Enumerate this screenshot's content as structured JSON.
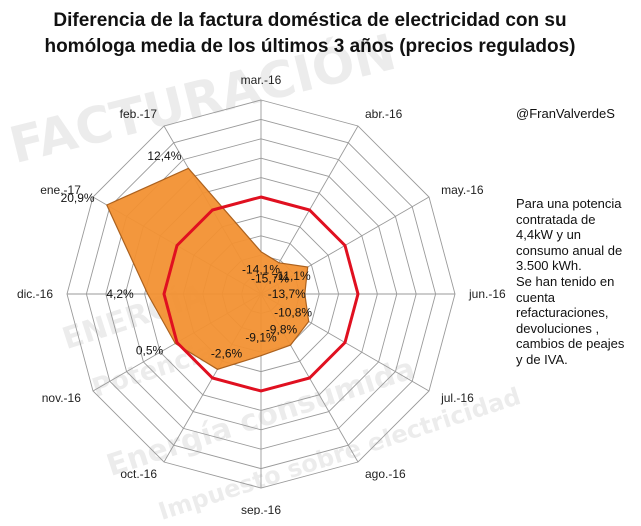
{
  "watermarks": [
    "FACTURACIÓN",
    "ENERGÍA",
    "Energía consumida",
    "Potencia",
    "Impuesto sobre electricidad"
  ],
  "title_line1": "Diferencia de la factura doméstica de electricidad con su",
  "title_line2": "homóloga media de los últimos 3 años (precios regulados)",
  "credit": "@FranValverdeS",
  "note_lines": [
    "Para una potencia",
    "contratada de",
    "4,4kW y un",
    "consumo anual de",
    "3.500 kWh.",
    "Se han tenido en",
    "cuenta",
    "refacturaciones,",
    "devoluciones ,",
    "cambios de peajes",
    "y  de IVA."
  ],
  "chart_data": {
    "type": "radar",
    "categories": [
      "mar.-16",
      "abr.-16",
      "may.-16",
      "jun.-16",
      "jul.-16",
      "ago.-16",
      "sep.-16",
      "oct.-16",
      "nov.-16",
      "dic.-16",
      "ene.-17",
      "feb.-17"
    ],
    "values": [
      -14.1,
      -15.7,
      -11.1,
      -13.7,
      -10.8,
      -9.8,
      -9.1,
      -2.6,
      0.5,
      4.2,
      20.9,
      12.4
    ],
    "value_labels": [
      "-14,1%",
      "-15,7%",
      "-11,1%",
      "-13,7%",
      "-10,8%",
      "-9,8%",
      "-9,1%",
      "-2,6%",
      "0,5%",
      "4,2%",
      "20,9%",
      "12,4%"
    ],
    "rlim": [
      -25,
      25
    ],
    "ring_step": 5,
    "zero_ring_color": "#e01020",
    "fill_color": "#f39233",
    "grid": true
  }
}
